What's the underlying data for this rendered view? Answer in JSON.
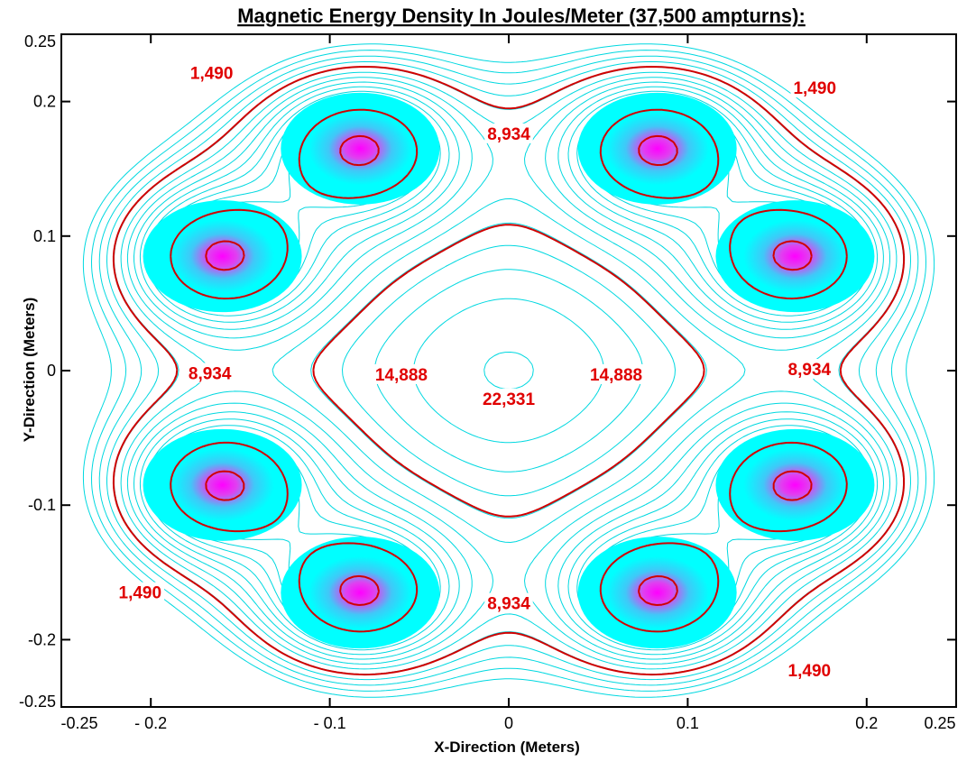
{
  "chart_data": {
    "type": "contour",
    "title": "Magnetic Energy Density In Joules/Meter (37,500 ampturns):",
    "xlabel": "X-Direction (Meters)",
    "ylabel": "Y-Direction (Meters)",
    "xlim": [
      -0.25,
      0.25
    ],
    "ylim": [
      -0.25,
      0.25
    ],
    "x_ticks": [
      {
        "value": -0.25,
        "label": "-0.25"
      },
      {
        "value": -0.2,
        "label": "- 0.2"
      },
      {
        "value": -0.1,
        "label": "- 0.1"
      },
      {
        "value": 0,
        "label": "0"
      },
      {
        "value": 0.1,
        "label": "0.1"
      },
      {
        "value": 0.2,
        "label": "0.2"
      },
      {
        "value": 0.25,
        "label": "0.25"
      }
    ],
    "y_ticks": [
      {
        "value": 0.25,
        "label": "0.25"
      },
      {
        "value": 0.2,
        "label": "0.2"
      },
      {
        "value": 0.1,
        "label": "0.1"
      },
      {
        "value": 0,
        "label": "0"
      },
      {
        "value": -0.1,
        "label": "-0.1"
      },
      {
        "value": -0.2,
        "label": "-0.2"
      },
      {
        "value": -0.25,
        "label": "-0.25"
      }
    ],
    "grid": false,
    "colors": {
      "minor_contour": "#00d8e0",
      "labeled_contour": "#d00000",
      "peak": "#ff00ff",
      "core": "#00ffff"
    },
    "peaks": [
      {
        "x": -0.083,
        "y": 0.165
      },
      {
        "x": 0.083,
        "y": 0.165
      },
      {
        "x": -0.16,
        "y": 0.085
      },
      {
        "x": 0.16,
        "y": 0.085
      },
      {
        "x": -0.16,
        "y": -0.085
      },
      {
        "x": 0.16,
        "y": -0.085
      },
      {
        "x": -0.083,
        "y": -0.165
      },
      {
        "x": 0.083,
        "y": -0.165
      }
    ],
    "contour_labels": [
      {
        "text": "1,490",
        "x": -0.166,
        "y": 0.218
      },
      {
        "text": "1,490",
        "x": 0.171,
        "y": 0.207
      },
      {
        "text": "1,490",
        "x": -0.206,
        "y": -0.168
      },
      {
        "text": "1,490",
        "x": 0.168,
        "y": -0.226
      },
      {
        "text": "8,934",
        "x": 0.0,
        "y": 0.173
      },
      {
        "text": "8,934",
        "x": 0.0,
        "y": -0.176
      },
      {
        "text": "8,934",
        "x": -0.167,
        "y": -0.005
      },
      {
        "text": "8,934",
        "x": 0.168,
        "y": -0.002
      },
      {
        "text": "14,888",
        "x": -0.06,
        "y": -0.006
      },
      {
        "text": "14,888",
        "x": 0.06,
        "y": -0.006
      },
      {
        "text": "22,331",
        "x": 0.0,
        "y": -0.024
      }
    ]
  }
}
